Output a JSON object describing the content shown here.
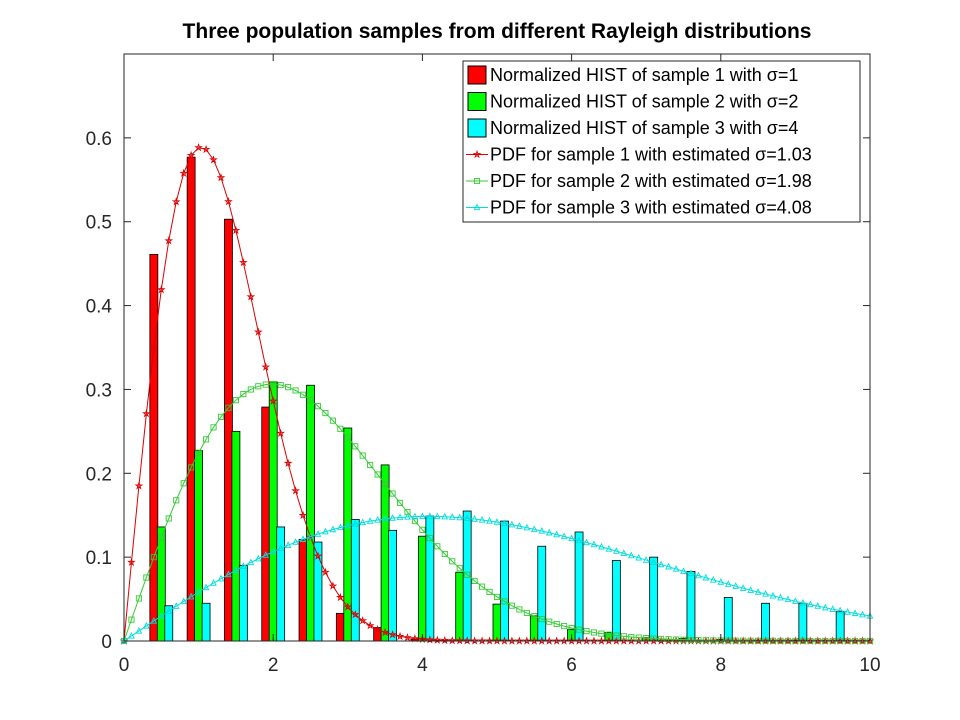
{
  "chart_data": {
    "type": "bar",
    "title": "Three population samples from different Rayleigh distributions",
    "xlabel": "",
    "ylabel": "",
    "xlim": [
      0,
      10
    ],
    "ylim": [
      0,
      0.7
    ],
    "xticks": [
      "0",
      "2",
      "4",
      "6",
      "8",
      "10"
    ],
    "yticks": [
      "0",
      "0.1",
      "0.2",
      "0.3",
      "0.4",
      "0.5",
      "0.6"
    ],
    "grid": false,
    "legend_position": "top-right",
    "histograms": [
      {
        "name": "Normalized HIST of sample 1 with σ=1",
        "color": "#ff0000",
        "x": [
          0.4,
          0.9,
          1.4,
          1.9,
          2.4,
          2.9,
          3.4,
          3.9,
          4.4,
          4.9,
          5.4,
          5.9,
          6.4,
          6.9,
          7.4,
          7.9,
          8.4,
          8.9,
          9.4,
          9.9
        ],
        "values": [
          0.461,
          0.577,
          0.503,
          0.279,
          0.121,
          0.033,
          0.016,
          0.002,
          0,
          0,
          0,
          0,
          0,
          0,
          0,
          0,
          0,
          0,
          0,
          0
        ]
      },
      {
        "name": "Normalized HIST of sample 2 with σ=2",
        "color": "#00ff00",
        "x": [
          0.5,
          1.0,
          1.5,
          2.0,
          2.5,
          3.0,
          3.5,
          4.0,
          4.5,
          5.0,
          5.5,
          6.0,
          6.5,
          7.0,
          7.5,
          8.0,
          8.5,
          9.0,
          9.5,
          10.0
        ],
        "values": [
          0.136,
          0.227,
          0.25,
          0.309,
          0.305,
          0.254,
          0.21,
          0.125,
          0.082,
          0.044,
          0.03,
          0.014,
          0.01,
          0.004,
          0.003,
          0.002,
          0.001,
          0.001,
          0,
          0
        ]
      },
      {
        "name": "Normalized HIST of sample 3 with σ=4",
        "color": "#00ffff",
        "x": [
          0.6,
          1.1,
          1.6,
          2.1,
          2.6,
          3.1,
          3.6,
          4.1,
          4.6,
          5.1,
          5.6,
          6.1,
          6.6,
          7.1,
          7.6,
          8.1,
          8.6,
          9.1,
          9.6,
          10.1
        ],
        "values": [
          0.042,
          0.045,
          0.09,
          0.136,
          0.118,
          0.145,
          0.132,
          0.149,
          0.155,
          0.143,
          0.113,
          0.13,
          0.096,
          0.1,
          0.083,
          0.052,
          0.045,
          0.045,
          0.035,
          0
        ]
      }
    ],
    "pdf_lines": [
      {
        "name": "PDF for sample 1 with estimated σ=1.03",
        "color": "#dd0000",
        "sigma": 1.03,
        "marker": "star",
        "x_start": 0,
        "x_end": 10,
        "num_points": 101
      },
      {
        "name": "PDF for sample 2 with estimated σ=1.98",
        "color": "#33cc33",
        "sigma": 1.98,
        "marker": "square",
        "x_start": 0,
        "x_end": 10,
        "num_points": 101
      },
      {
        "name": "PDF for sample 3 with estimated σ=4.08",
        "color": "#00dddd",
        "sigma": 4.08,
        "marker": "triangle",
        "x_start": 0,
        "x_end": 10,
        "num_points": 101
      }
    ]
  }
}
